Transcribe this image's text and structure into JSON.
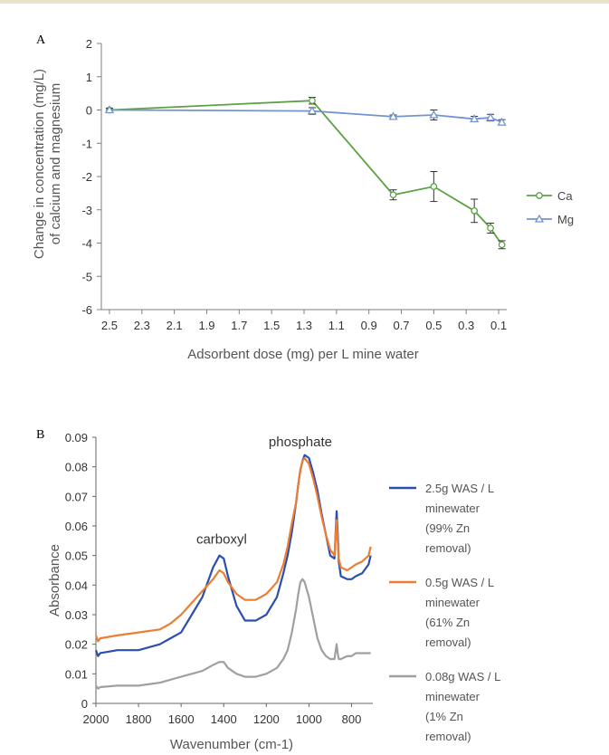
{
  "colors": {
    "top_rule": "#e8e3c9"
  },
  "chart_data": [
    {
      "panel": "A",
      "type": "line",
      "ylabel": "Change in concentration (mg/L)",
      "ylabel2": "of calcium and magnesium",
      "xlabel": "Adsorbent dose (mg) per L mine water",
      "xlim": [
        2.55,
        0.05
      ],
      "ylim": [
        -6,
        2
      ],
      "x_ticks": [
        "2.5",
        "2.3",
        "2.1",
        "1.9",
        "1.7",
        "1.5",
        "1.3",
        "1.1",
        "0.9",
        "0.7",
        "0.5",
        "0.3",
        "0.1"
      ],
      "x_tick_values": [
        2.5,
        2.3,
        2.1,
        1.9,
        1.7,
        1.5,
        1.3,
        1.1,
        0.9,
        0.7,
        0.5,
        0.3,
        0.1
      ],
      "y_ticks": [
        "2",
        "1",
        "0",
        "-1",
        "-2",
        "-3",
        "-4",
        "-5",
        "-6"
      ],
      "y_tick_values": [
        2,
        1,
        0,
        -1,
        -2,
        -3,
        -4,
        -5,
        -6
      ],
      "legend_position": "right",
      "series": [
        {
          "name": "Ca",
          "color": "#5aa243",
          "marker": "circle",
          "x": [
            2.5,
            1.25,
            0.75,
            0.5,
            0.25,
            0.15,
            0.08
          ],
          "y": [
            0.0,
            0.28,
            -2.55,
            -2.3,
            -3.03,
            -3.55,
            -4.05
          ],
          "err": [
            0.05,
            0.1,
            0.15,
            0.45,
            0.35,
            0.15,
            0.12
          ]
        },
        {
          "name": "Mg",
          "color": "#7394d0",
          "marker": "triangle",
          "x": [
            2.5,
            1.25,
            0.75,
            0.5,
            0.25,
            0.15,
            0.08
          ],
          "y": [
            0.0,
            -0.03,
            -0.2,
            -0.15,
            -0.27,
            -0.23,
            -0.37
          ],
          "err": [
            0.05,
            0.1,
            0.05,
            0.15,
            0.08,
            0.1,
            0.08
          ]
        }
      ]
    },
    {
      "panel": "B",
      "type": "line",
      "xlabel": "Wavenumber (cm-1)",
      "ylabel": "Absorbance",
      "xlim": [
        2000,
        700
      ],
      "ylim": [
        0,
        0.09
      ],
      "x_ticks": [
        "2000",
        "1800",
        "1600",
        "1400",
        "1200",
        "1000",
        "800"
      ],
      "x_tick_values": [
        2000,
        1800,
        1600,
        1400,
        1200,
        1000,
        800
      ],
      "y_ticks": [
        "0.09",
        "0.08",
        "0.07",
        "0.06",
        "0.05",
        "0.04",
        "0.03",
        "0.02",
        "0.01",
        "0"
      ],
      "y_tick_values": [
        0.09,
        0.08,
        0.07,
        0.06,
        0.05,
        0.04,
        0.03,
        0.02,
        0.01,
        0
      ],
      "annotations": [
        {
          "text": "carboxyl",
          "x": 1410,
          "y": 0.054
        },
        {
          "text": "phosphate",
          "x": 1040,
          "y": 0.087
        }
      ],
      "legend_position": "right",
      "series": [
        {
          "name_lines": [
            "2.5g WAS / L",
            "minewater",
            "(99% Zn",
            "removal)"
          ],
          "color": "#2b4fae",
          "x": [
            2000,
            1990,
            1980,
            1900,
            1800,
            1700,
            1650,
            1600,
            1550,
            1500,
            1450,
            1420,
            1400,
            1380,
            1340,
            1300,
            1250,
            1200,
            1150,
            1120,
            1100,
            1080,
            1060,
            1050,
            1040,
            1030,
            1020,
            1000,
            980,
            960,
            940,
            920,
            900,
            880,
            870,
            865,
            860,
            850,
            820,
            800,
            780,
            750,
            720,
            710
          ],
          "y": [
            0.018,
            0.016,
            0.017,
            0.018,
            0.018,
            0.02,
            0.022,
            0.024,
            0.03,
            0.036,
            0.046,
            0.05,
            0.049,
            0.043,
            0.033,
            0.028,
            0.028,
            0.03,
            0.036,
            0.044,
            0.05,
            0.058,
            0.068,
            0.074,
            0.079,
            0.082,
            0.084,
            0.083,
            0.078,
            0.072,
            0.064,
            0.057,
            0.05,
            0.049,
            0.065,
            0.058,
            0.048,
            0.043,
            0.042,
            0.042,
            0.043,
            0.044,
            0.047,
            0.05
          ]
        },
        {
          "name_lines": [
            "0.5g WAS / L",
            "minewater",
            "(61% Zn",
            "removal)"
          ],
          "color": "#ed7d31",
          "x": [
            2000,
            1990,
            1980,
            1900,
            1800,
            1700,
            1650,
            1600,
            1550,
            1500,
            1450,
            1420,
            1400,
            1380,
            1340,
            1300,
            1250,
            1200,
            1150,
            1120,
            1100,
            1080,
            1060,
            1050,
            1040,
            1030,
            1020,
            1000,
            980,
            960,
            940,
            920,
            900,
            880,
            870,
            865,
            860,
            850,
            820,
            800,
            780,
            750,
            720,
            710
          ],
          "y": [
            0.023,
            0.021,
            0.022,
            0.023,
            0.024,
            0.025,
            0.027,
            0.03,
            0.034,
            0.038,
            0.042,
            0.045,
            0.044,
            0.041,
            0.037,
            0.035,
            0.035,
            0.037,
            0.041,
            0.047,
            0.053,
            0.061,
            0.068,
            0.074,
            0.079,
            0.082,
            0.083,
            0.081,
            0.076,
            0.07,
            0.063,
            0.057,
            0.052,
            0.05,
            0.062,
            0.055,
            0.049,
            0.046,
            0.045,
            0.046,
            0.047,
            0.048,
            0.05,
            0.053
          ]
        },
        {
          "name_lines": [
            "0.08g WAS / L",
            "minewater",
            "(1% Zn",
            "removal)"
          ],
          "color": "#a0a0a0",
          "x": [
            2000,
            1990,
            1980,
            1900,
            1800,
            1700,
            1650,
            1600,
            1550,
            1500,
            1450,
            1420,
            1400,
            1380,
            1340,
            1300,
            1250,
            1200,
            1150,
            1120,
            1100,
            1080,
            1060,
            1050,
            1040,
            1030,
            1020,
            1000,
            980,
            960,
            940,
            920,
            900,
            880,
            870,
            865,
            860,
            850,
            820,
            800,
            780,
            750,
            720,
            710
          ],
          "y": [
            0.006,
            0.005,
            0.0055,
            0.006,
            0.006,
            0.007,
            0.008,
            0.009,
            0.01,
            0.011,
            0.013,
            0.014,
            0.014,
            0.012,
            0.01,
            0.009,
            0.009,
            0.01,
            0.012,
            0.015,
            0.018,
            0.024,
            0.032,
            0.037,
            0.041,
            0.042,
            0.041,
            0.036,
            0.029,
            0.022,
            0.018,
            0.016,
            0.015,
            0.015,
            0.02,
            0.017,
            0.015,
            0.015,
            0.016,
            0.016,
            0.017,
            0.017,
            0.017,
            0.017
          ]
        }
      ]
    }
  ]
}
